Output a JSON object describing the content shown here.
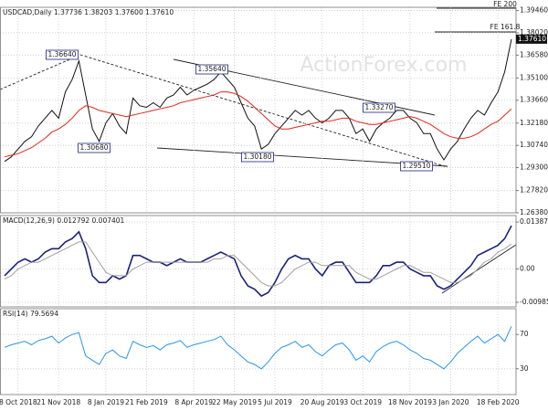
{
  "chart_data": [
    {
      "type": "line",
      "title": "USDCAD,Daily 1.37736 1.38203 1.37600 1.37610",
      "watermark": "ActionForex.com",
      "series": [
        {
          "color": "#111111",
          "values": [
            1.297,
            1.3,
            1.305,
            1.31,
            1.313,
            1.32,
            1.325,
            1.33,
            1.325,
            1.342,
            1.35,
            1.362,
            1.34,
            1.318,
            1.31,
            1.322,
            1.328,
            1.32,
            1.315,
            1.338,
            1.333,
            1.332,
            1.335,
            1.332,
            1.338,
            1.34,
            1.345,
            1.34,
            1.343,
            1.345,
            1.347,
            1.35,
            1.355,
            1.35,
            1.345,
            1.335,
            1.325,
            1.32,
            1.305,
            1.308,
            1.315,
            1.32,
            1.325,
            1.33,
            1.327,
            1.33,
            1.325,
            1.322,
            1.325,
            1.33,
            1.33,
            1.325,
            1.315,
            1.318,
            1.31,
            1.318,
            1.322,
            1.325,
            1.33,
            1.33,
            1.325,
            1.322,
            1.315,
            1.315,
            1.305,
            1.298,
            1.305,
            1.31,
            1.318,
            1.325,
            1.33,
            1.327,
            1.335,
            1.342,
            1.355,
            1.3761
          ]
        },
        {
          "color": "#e3261d",
          "values": [
            1.3,
            1.301,
            1.302,
            1.304,
            1.306,
            1.309,
            1.312,
            1.316,
            1.318,
            1.321,
            1.325,
            1.33,
            1.333,
            1.332,
            1.33,
            1.329,
            1.328,
            1.327,
            1.326,
            1.327,
            1.328,
            1.329,
            1.33,
            1.331,
            1.332,
            1.333,
            1.335,
            1.336,
            1.337,
            1.338,
            1.339,
            1.34,
            1.342,
            1.342,
            1.341,
            1.339,
            1.336,
            1.332,
            1.328,
            1.324,
            1.32,
            1.318,
            1.318,
            1.319,
            1.32,
            1.321,
            1.322,
            1.323,
            1.323,
            1.324,
            1.325,
            1.325,
            1.323,
            1.322,
            1.321,
            1.321,
            1.322,
            1.323,
            1.324,
            1.325,
            1.326,
            1.325,
            1.323,
            1.321,
            1.318,
            1.315,
            1.313,
            1.312,
            1.312,
            1.313,
            1.315,
            1.318,
            1.321,
            1.323,
            1.327,
            1.331
          ]
        }
      ],
      "ylim": [
        1.2638,
        1.3967
      ],
      "yticks": [
        {
          "value": 1.2638,
          "label": "1.26380"
        },
        {
          "value": 1.2782,
          "label": "1.27820"
        },
        {
          "value": 1.293,
          "label": "1.29300"
        },
        {
          "value": 1.3074,
          "label": "1.30740"
        },
        {
          "value": 1.3218,
          "label": "1.32180"
        },
        {
          "value": 1.3366,
          "label": "1.33660"
        },
        {
          "value": 1.351,
          "label": "1.35100"
        },
        {
          "value": 1.3658,
          "label": "1.36580"
        },
        {
          "value": 1.3802,
          "label": "1.38020"
        },
        {
          "value": 1.3946,
          "label": "1.39460"
        }
      ],
      "annotations": [
        "1.36640",
        "1.35640",
        "1.30680",
        "1.30180",
        "1.33270",
        "1.29510",
        "FE 161.8",
        "FE 200"
      ],
      "last_label": "1.37610",
      "grid": true
    },
    {
      "type": "line",
      "title": "MACD(12,26,9) 0.012792 0.007401",
      "series": [
        {
          "color": "#1b237a",
          "values": [
            -0.002,
            0.0,
            0.002,
            0.003,
            0.002,
            0.003,
            0.005,
            0.006,
            0.006,
            0.008,
            0.009,
            0.011,
            0.006,
            -0.002,
            -0.004,
            -0.004,
            -0.002,
            -0.003,
            -0.002,
            0.004,
            0.004,
            0.003,
            0.002,
            0.002,
            0.001,
            0.002,
            0.003,
            0.002,
            0.002,
            0.002,
            0.003,
            0.004,
            0.005,
            0.004,
            0.003,
            -0.002,
            -0.005,
            -0.006,
            -0.008,
            -0.007,
            -0.004,
            0.0,
            0.003,
            0.004,
            0.003,
            0.003,
            0.0,
            -0.002,
            0.001,
            0.002,
            0.002,
            -0.001,
            -0.004,
            -0.004,
            -0.004,
            -0.002,
            0.001,
            0.001,
            0.002,
            0.002,
            0.0,
            -0.001,
            -0.002,
            -0.002,
            -0.005,
            -0.006,
            -0.005,
            -0.003,
            -0.001,
            0.001,
            0.004,
            0.005,
            0.006,
            0.007,
            0.009,
            0.0128
          ]
        },
        {
          "color": "#a0a0a0",
          "values": [
            -0.003,
            -0.002,
            0.0,
            0.001,
            0.002,
            0.002,
            0.003,
            0.004,
            0.005,
            0.006,
            0.007,
            0.008,
            0.008,
            0.005,
            0.002,
            -0.001,
            -0.002,
            -0.002,
            -0.002,
            0.0,
            0.001,
            0.002,
            0.002,
            0.002,
            0.002,
            0.002,
            0.002,
            0.002,
            0.002,
            0.002,
            0.002,
            0.003,
            0.003,
            0.004,
            0.004,
            0.002,
            0.0,
            -0.002,
            -0.004,
            -0.005,
            -0.005,
            -0.004,
            -0.002,
            0.0,
            0.001,
            0.002,
            0.002,
            0.001,
            0.001,
            0.001,
            0.001,
            0.001,
            -0.001,
            -0.002,
            -0.003,
            -0.003,
            -0.002,
            -0.001,
            0.0,
            0.001,
            0.001,
            0.0,
            -0.001,
            -0.001,
            -0.002,
            -0.003,
            -0.004,
            -0.004,
            -0.003,
            -0.002,
            0.0,
            0.002,
            0.003,
            0.005,
            0.006,
            0.0074
          ]
        }
      ],
      "ylim": [
        -0.0112,
        0.0158
      ],
      "yticks": [
        0.01387,
        {
          "value": 0,
          "label": "0.00"
        },
        -0.00985
      ],
      "grid": true
    },
    {
      "type": "line",
      "title": "RSI(14) 79.5694",
      "categories": [
        null,
        null,
        "8 Oct 2018",
        null,
        null,
        null,
        null,
        null,
        "21 Nov 2018",
        null,
        null,
        null,
        null,
        null,
        null,
        "8 Jan 2019",
        null,
        null,
        null,
        null,
        null,
        "21 Feb 2019",
        null,
        null,
        null,
        null,
        null,
        null,
        "8 Apr 2019",
        null,
        null,
        null,
        null,
        null,
        "22 May 2019",
        null,
        null,
        null,
        null,
        null,
        "5 Jul 2019",
        null,
        null,
        null,
        null,
        null,
        null,
        "20 Aug 2019",
        null,
        null,
        null,
        null,
        null,
        "3 Oct 2019",
        null,
        null,
        null,
        null,
        null,
        null,
        "18 Nov 2019",
        null,
        null,
        null,
        null,
        null,
        "3 Jan 2020",
        null,
        null,
        null,
        null,
        null,
        null,
        "18 Feb 2020",
        null,
        null
      ],
      "series": [
        {
          "color": "#2a95ea",
          "values": [
            55,
            58,
            60,
            62,
            58,
            63,
            65,
            68,
            60,
            66,
            70,
            72,
            45,
            40,
            35,
            48,
            52,
            45,
            42,
            62,
            58,
            55,
            57,
            52,
            58,
            60,
            63,
            55,
            58,
            60,
            62,
            64,
            68,
            58,
            52,
            45,
            38,
            35,
            30,
            38,
            48,
            55,
            58,
            62,
            55,
            58,
            50,
            45,
            52,
            58,
            60,
            52,
            40,
            45,
            38,
            50,
            56,
            60,
            62,
            58,
            52,
            48,
            42,
            40,
            35,
            30,
            38,
            48,
            55,
            62,
            68,
            60,
            65,
            70,
            62,
            79.5694
          ]
        }
      ],
      "ylim": [
        0,
        100
      ],
      "yticks": [
        70,
        30
      ],
      "grid": true
    }
  ]
}
